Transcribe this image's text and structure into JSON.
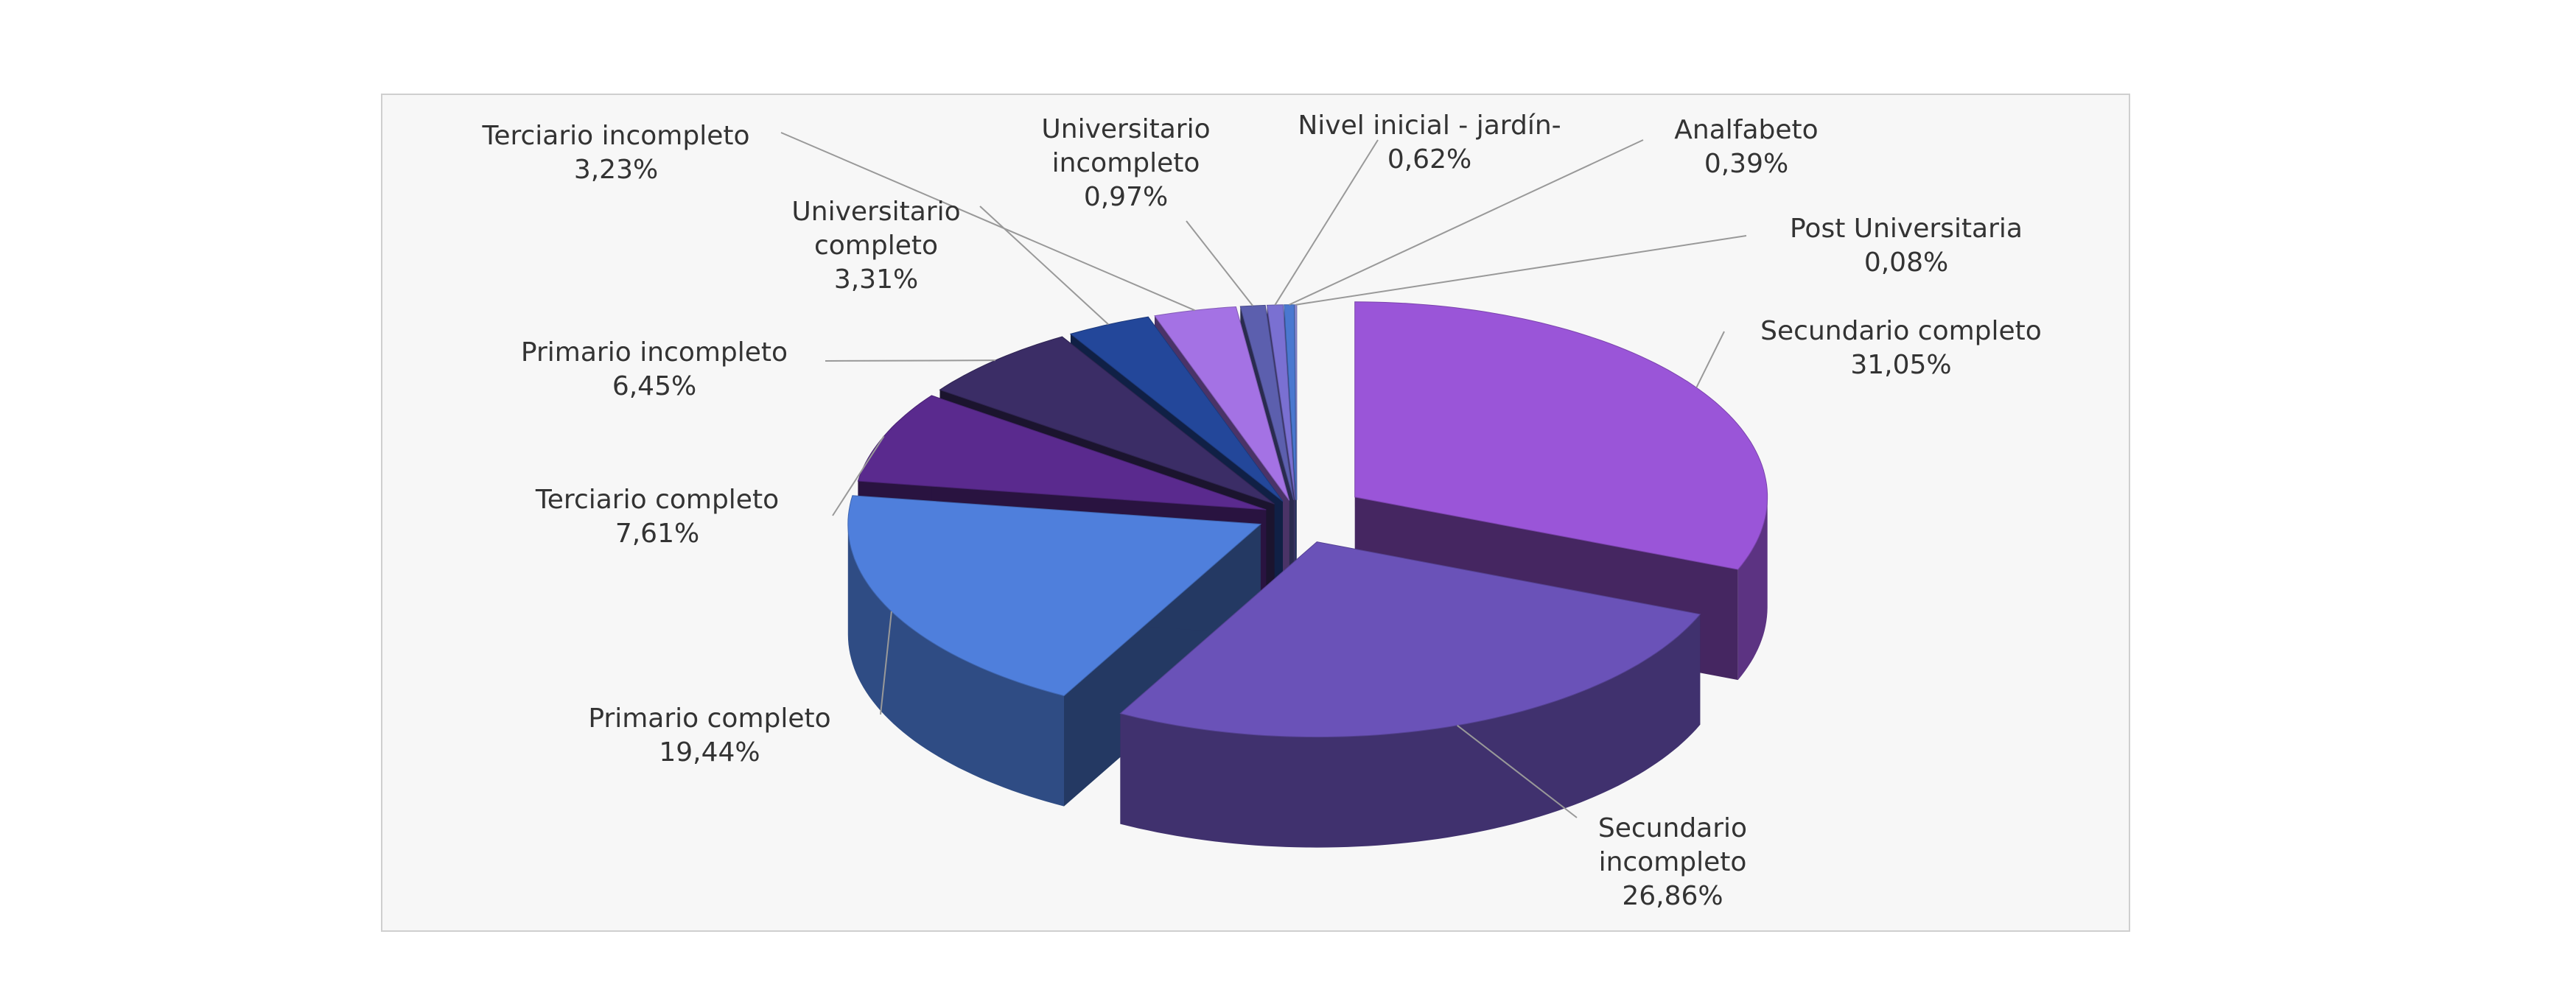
{
  "chart_data": {
    "type": "pie",
    "categories": [
      "Secundario completo",
      "Secundario incompleto",
      "Primario completo",
      "Terciario completo",
      "Primario incompleto",
      "Universitario completo",
      "Terciario incompleto",
      "Universitario incompleto",
      "Nivel inicial - jardín-",
      "Analfabeto",
      "Post Universitaria"
    ],
    "values": [
      31.05,
      26.86,
      19.44,
      7.61,
      6.45,
      3.31,
      3.23,
      0.97,
      0.62,
      0.39,
      0.08
    ],
    "value_labels": [
      "31,05%",
      "26,86%",
      "19,44%",
      "7,61%",
      "6,45%",
      "3,31%",
      "3,23%",
      "0,97%",
      "0,62%",
      "0,39%",
      "0,08%"
    ],
    "colors": [
      "#9a55d8",
      "#6a52b8",
      "#4f7fdc",
      "#5a2a8e",
      "#3b2d66",
      "#23479a",
      "#a472e4",
      "#5c5fae",
      "#7a70d2",
      "#4a78d0",
      "#8c8cd6"
    ]
  }
}
